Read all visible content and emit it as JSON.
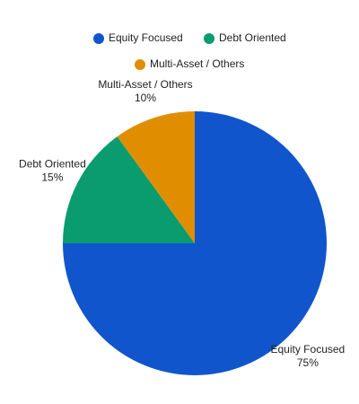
{
  "chart_data": {
    "type": "pie",
    "categories": [
      "Equity Focused",
      "Debt Oriented",
      "Multi-Asset / Others"
    ],
    "values": [
      75,
      15,
      10
    ],
    "value_labels": [
      "75%",
      "15%",
      "10%"
    ],
    "colors": [
      "#1155cc",
      "#0a9b6e",
      "#e08e00"
    ],
    "legend": "top"
  }
}
